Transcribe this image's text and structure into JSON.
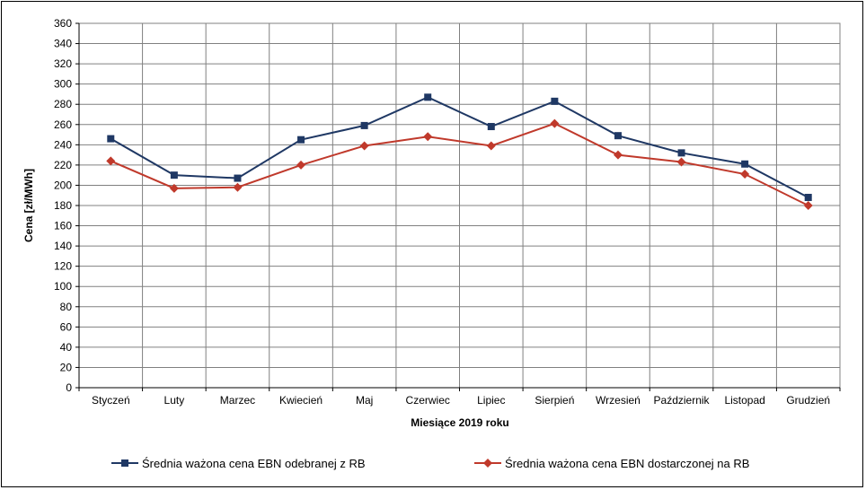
{
  "chart_data": {
    "type": "line",
    "xlabel": "Miesiące 2019  roku",
    "ylabel": "Cena [zł/MWh]",
    "ylim": [
      0,
      360
    ],
    "ytick_step": 20,
    "grid": true,
    "legend_position": "bottom",
    "categories": [
      "Styczeń",
      "Luty",
      "Marzec",
      "Kwiecień",
      "Maj",
      "Czerwiec",
      "Lipiec",
      "Sierpień",
      "Wrzesień",
      "Październik",
      "Listopad",
      "Grudzień"
    ],
    "series": [
      {
        "name": "Średnia ważona cena EBN odebranej z RB",
        "color": "#1f3864",
        "marker": "square",
        "values": [
          246,
          210,
          207,
          245,
          259,
          287,
          258,
          283,
          249,
          232,
          221,
          188
        ]
      },
      {
        "name": "Średnia ważona cena EBN dostarczonej na RB",
        "color": "#c0392b",
        "marker": "diamond",
        "values": [
          224,
          197,
          198,
          220,
          239,
          248,
          239,
          261,
          230,
          223,
          211,
          180
        ]
      }
    ]
  }
}
